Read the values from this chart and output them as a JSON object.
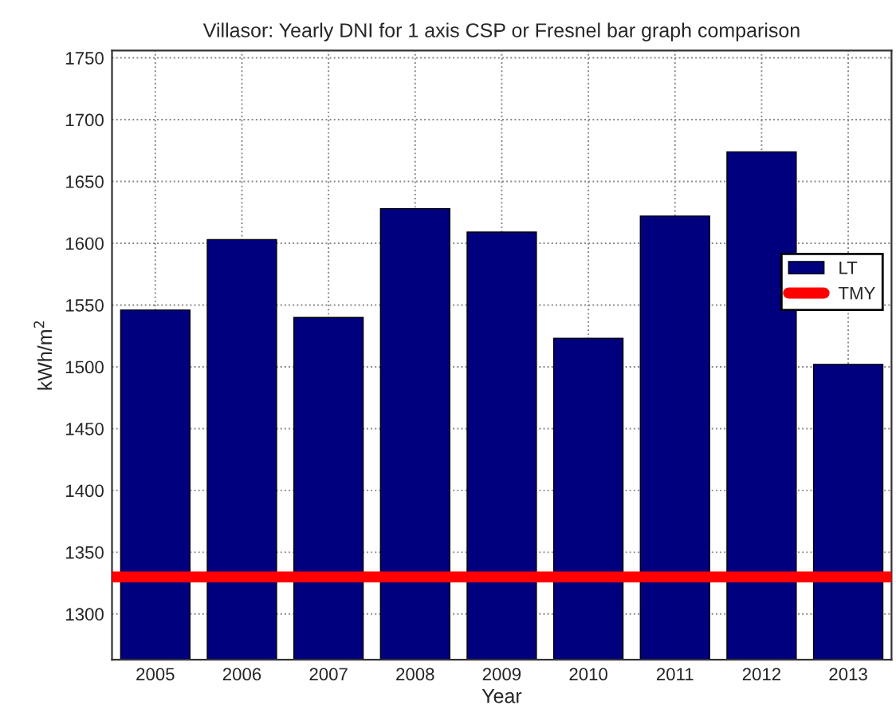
{
  "chart_data": {
    "type": "bar",
    "title": "Villasor: Yearly DNI for 1 axis CSP or Fresnel bar graph comparison",
    "xlabel": "Year",
    "ylabel": "kWh/m$^{2}$",
    "categories": [
      "2005",
      "2006",
      "2007",
      "2008",
      "2009",
      "2010",
      "2011",
      "2012",
      "2013"
    ],
    "series": [
      {
        "name": "LT",
        "color": "#00007f",
        "values": [
          1546,
          1603,
          1540,
          1628,
          1609,
          1523,
          1622,
          1674,
          1502
        ]
      }
    ],
    "ref_lines": [
      {
        "axis": "y",
        "value": 1330,
        "label": "TMY",
        "color": "#ff0000",
        "line_style": "solid"
      }
    ],
    "ylim": [
      1263,
      1756
    ],
    "yticks": [
      1300,
      1350,
      1400,
      1450,
      1500,
      1550,
      1600,
      1650,
      1700,
      1750
    ],
    "grid": true,
    "legend": "right"
  }
}
